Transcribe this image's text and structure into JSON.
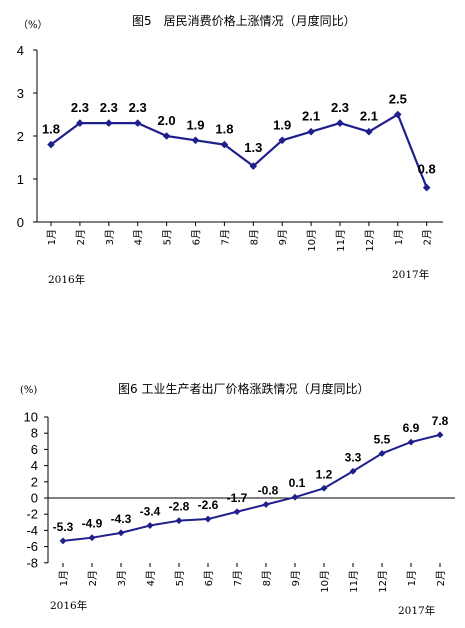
{
  "chart_data": [
    {
      "type": "line",
      "title": "图5　居民消费价格上涨情况（月度同比）",
      "unit": "（%）",
      "categories": [
        "1月",
        "2月",
        "3月",
        "4月",
        "5月",
        "6月",
        "7月",
        "8月",
        "9月",
        "10月",
        "11月",
        "12月",
        "1月",
        "2月"
      ],
      "year_labels": [
        "2016年",
        "2017年"
      ],
      "series": [
        {
          "values": [
            1.8,
            2.3,
            2.3,
            2.3,
            2.0,
            1.9,
            1.8,
            1.3,
            1.9,
            2.1,
            2.3,
            2.1,
            2.5,
            0.8
          ]
        }
      ],
      "data_labels": [
        "1.8",
        "2.3",
        "2.3",
        "2.3",
        "2.0",
        "1.9",
        "1.8",
        "1.3",
        "1.9",
        "2.1",
        "2.3",
        "2.1",
        "2.5",
        "0.8"
      ],
      "yticks": [
        "0",
        "1",
        "2",
        "3",
        "4"
      ],
      "ylim": [
        0,
        4
      ],
      "grid": false,
      "color": "#1F1F8C"
    },
    {
      "type": "line",
      "title": "图6  工业生产者出厂价格涨跌情况（月度同比）",
      "unit": "(%)",
      "categories": [
        "1月",
        "2月",
        "3月",
        "4月",
        "5月",
        "6月",
        "7月",
        "8月",
        "9月",
        "10月",
        "11月",
        "12月",
        "1月",
        "2月"
      ],
      "year_labels": [
        "2016年",
        "2017年"
      ],
      "series": [
        {
          "values": [
            -5.3,
            -4.9,
            -4.3,
            -3.4,
            -2.8,
            -2.6,
            -1.7,
            -0.8,
            0.1,
            1.2,
            3.3,
            5.5,
            6.9,
            7.8
          ]
        }
      ],
      "data_labels": [
        "-5.3",
        "-4.9",
        "-4.3",
        "-3.4",
        "-2.8",
        "-2.6",
        "-1.7",
        "-0.8",
        "0.1",
        "1.2",
        "3.3",
        "5.5",
        "6.9",
        "7.8"
      ],
      "yticks": [
        "10",
        "8",
        "6",
        "4",
        "2",
        "0",
        "-2",
        "-4",
        "-6",
        "-8"
      ],
      "ylim": [
        -8,
        10
      ],
      "grid": false,
      "color": "#1F1F8C"
    }
  ]
}
